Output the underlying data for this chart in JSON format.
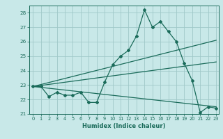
{
  "xlabel": "Humidex (Indice chaleur)",
  "background_color": "#c8e8e8",
  "grid_color": "#a0c8c8",
  "line_color": "#1a6b5a",
  "xlim": [
    -0.5,
    23.3
  ],
  "ylim": [
    21.0,
    28.5
  ],
  "yticks": [
    21,
    22,
    23,
    24,
    25,
    26,
    27,
    28
  ],
  "xticks": [
    0,
    1,
    2,
    3,
    4,
    5,
    6,
    7,
    8,
    9,
    10,
    11,
    12,
    13,
    14,
    15,
    16,
    17,
    18,
    19,
    20,
    21,
    22,
    23
  ],
  "series1_x": [
    0,
    1,
    2,
    3,
    4,
    5,
    6,
    7,
    8,
    9,
    10,
    11,
    12,
    13,
    14,
    15,
    16,
    17,
    18,
    19,
    20,
    21,
    22,
    23
  ],
  "series1_y": [
    22.9,
    22.9,
    22.2,
    22.5,
    22.3,
    22.3,
    22.5,
    21.8,
    21.8,
    23.2,
    24.4,
    25.0,
    25.4,
    26.4,
    28.2,
    27.0,
    27.4,
    26.7,
    26.0,
    24.5,
    23.3,
    21.1,
    21.5,
    21.4
  ],
  "trend1_x": [
    0,
    23
  ],
  "trend1_y": [
    22.9,
    26.1
  ],
  "trend2_x": [
    0,
    23
  ],
  "trend2_y": [
    22.9,
    24.6
  ],
  "trend3_x": [
    0,
    23
  ],
  "trend3_y": [
    22.9,
    21.5
  ]
}
